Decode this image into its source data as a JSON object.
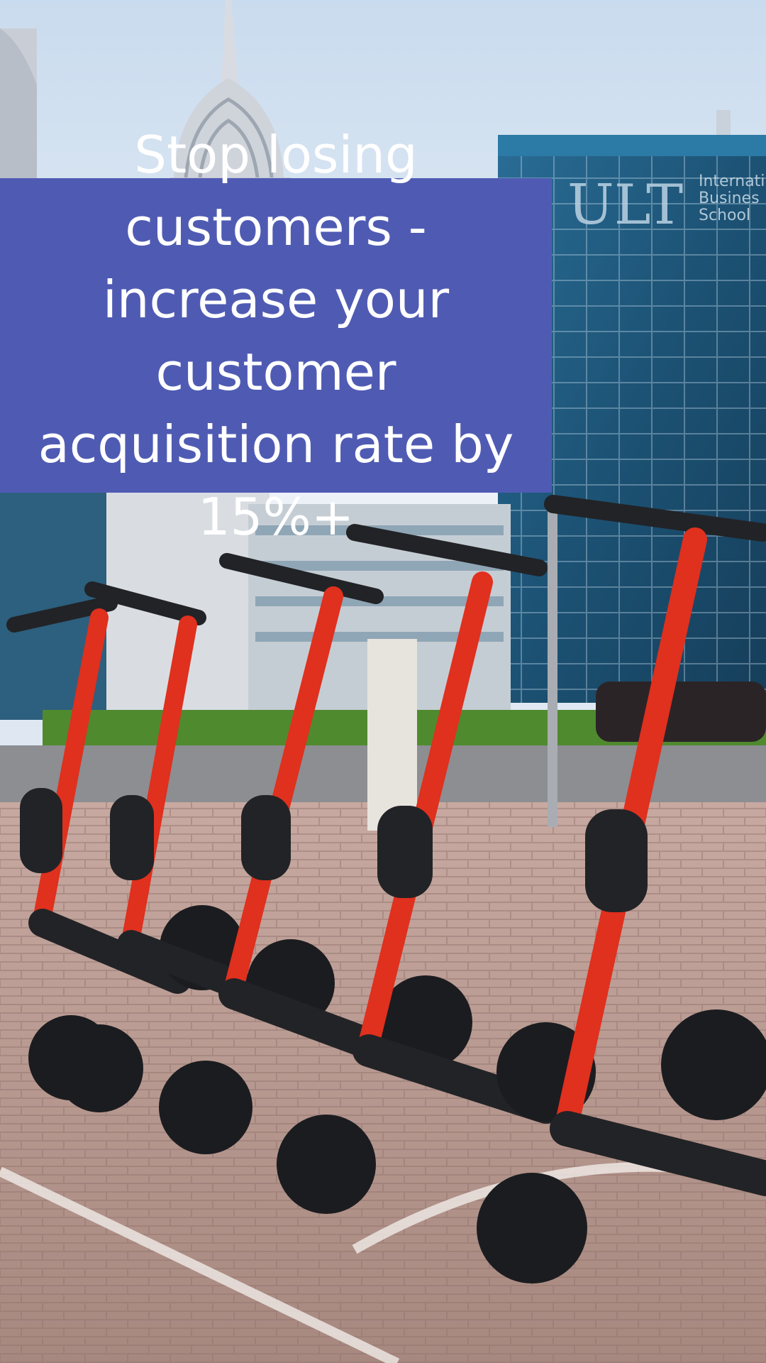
{
  "ad": {
    "headline": "Stop losing customers - increase your customer acquisition rate by 15%+"
  },
  "photo": {
    "building_sign": {
      "logo": "ULT",
      "lines": [
        "Internati",
        "Busines",
        "School"
      ]
    },
    "colors": {
      "sky": "#dfe8f2",
      "glass": "#1f5d82",
      "scooter_red": "#e0301e",
      "scooter_black": "#222326",
      "pavement": "#b99a92",
      "headline_box": "#4f5bb3"
    }
  }
}
